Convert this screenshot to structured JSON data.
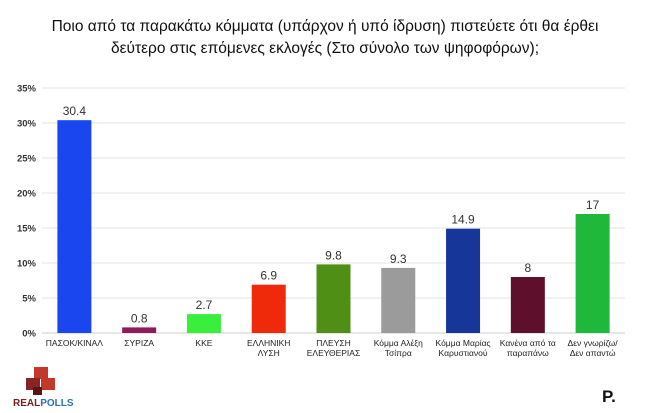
{
  "chart_data": {
    "type": "bar",
    "title": "Ποιο από τα παρακάτω κόμματα (υπάρχον ή υπό ίδρυση) πιστεύετε ότι θα έρθει δεύτερο στις επόμενες εκλογές (Στο σύνολο των ψηφοφόρων);",
    "title_lines": [
      "Ποιο από τα παρακάτω κόμματα (υπάρχον ή υπό ίδρυση) πιστεύετε ότι θα έρθει",
      "δεύτερο στις επόμενες εκλογές (Στο σύνολο των ψηφοφόρων);"
    ],
    "categories": [
      [
        "ΠΑΣΟΚ/ΚΙΝΑΛ"
      ],
      [
        "ΣΥΡΙΖΑ"
      ],
      [
        "ΚΚΕ"
      ],
      [
        "ΕΛΛΗΝΙΚΗ",
        "ΛΥΣΗ"
      ],
      [
        "ΠΛΕΥΣΗ",
        "ΕΛΕΥΘΕΡΙΑΣ"
      ],
      [
        "Κόμμα Αλέξη",
        "Τσίπρα"
      ],
      [
        "Κόμμα Μαρίας",
        "Καρυστιανού"
      ],
      [
        "Κανένα από  τα",
        "παραπάνω"
      ],
      [
        "Δεν γνωρίζω/",
        "Δεν απαντώ"
      ]
    ],
    "values": [
      30.4,
      0.8,
      2.7,
      6.9,
      9.8,
      9.3,
      14.9,
      8,
      17
    ],
    "value_labels": [
      "30.4",
      "0.8",
      "2.7",
      "6.9",
      "9.8",
      "9.3",
      "14.9",
      "8",
      "17"
    ],
    "colors": [
      "#1a46f0",
      "#8e1a5b",
      "#39ef3b",
      "#ef2a0b",
      "#4f8f16",
      "#9b9b9b",
      "#17369a",
      "#5e0f2c",
      "#1fb83a"
    ],
    "ylim": [
      0,
      35
    ],
    "yticks": [
      0,
      5,
      10,
      15,
      20,
      25,
      30,
      35
    ],
    "ytick_labels": [
      "0%",
      "5%",
      "10%",
      "15%",
      "20%",
      "25%",
      "30%",
      "35%"
    ],
    "gridlines": true
  },
  "branding": {
    "logo_text_left": "REAL",
    "logo_text_right": "POLLS",
    "brand_mark": "P.",
    "logo_colors": [
      "#c0392b",
      "#7a1f1f",
      "#2d6fb3"
    ]
  }
}
